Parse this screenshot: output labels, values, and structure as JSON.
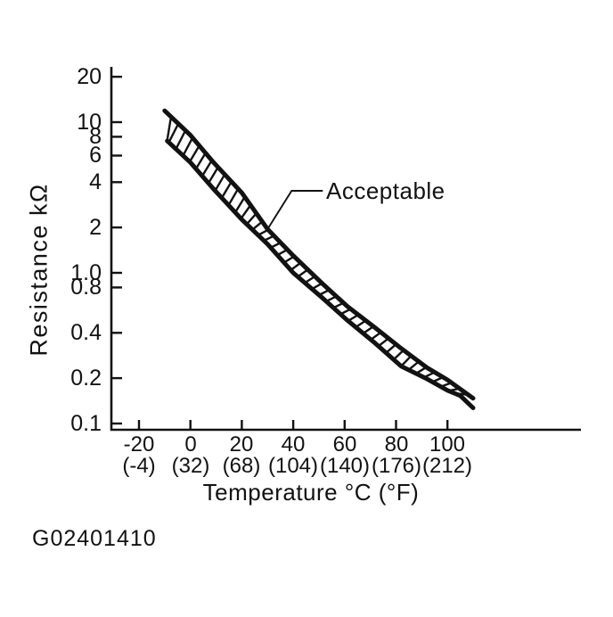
{
  "figure_id": "G02401410",
  "annotation": {
    "acceptable_label": "Acceptable"
  },
  "axes": {
    "y_title": "Resistance kΩ",
    "x_title": "Temperature °C (°F)",
    "y_tick_labels": [
      "20",
      "10",
      "8",
      "6",
      "4",
      "2",
      "1.0",
      "0.8",
      "0.4",
      "0.2",
      "0.1"
    ],
    "x_tick_labels_c": [
      "-20",
      "0",
      "20",
      "40",
      "60",
      "80",
      "100"
    ],
    "x_tick_labels_f": [
      "(-4)",
      "(32)",
      "(68)",
      "(104)",
      "(140)",
      "(176)",
      "(212)"
    ]
  },
  "chart_data": {
    "type": "area",
    "title": "",
    "xlabel": "Temperature °C (°F)",
    "ylabel": "Resistance kΩ",
    "x_scale": "linear",
    "y_scale": "log",
    "xlim_c": [
      -31,
      152
    ],
    "ylim_kohm": [
      0.1,
      20
    ],
    "grid": false,
    "y_ticks": [
      20,
      10,
      8,
      6,
      4,
      2,
      1.0,
      0.8,
      0.4,
      0.2,
      0.1
    ],
    "x_ticks_c": [
      -20,
      0,
      20,
      40,
      60,
      80,
      100
    ],
    "x_ticks_f": [
      -4,
      32,
      68,
      104,
      140,
      176,
      212
    ],
    "band_label": "Acceptable",
    "band_label_anchor": {
      "t_c": 30,
      "r_kohm": 1.95
    },
    "hatch_between_series": true,
    "series": [
      {
        "name": "upper_limit",
        "t_c": [
          -10,
          0,
          9,
          20,
          30,
          40,
          51,
          61,
          72,
          82,
          92,
          100,
          110
        ],
        "r_kohm": [
          11.9,
          8.2,
          5.4,
          3.4,
          1.95,
          1.3,
          0.86,
          0.6,
          0.43,
          0.315,
          0.235,
          0.195,
          0.147
        ]
      },
      {
        "name": "lower_limit",
        "t_c": [
          -9,
          0,
          9,
          20,
          30,
          40,
          51,
          61,
          72,
          82,
          92,
          100,
          105,
          110
        ],
        "r_kohm": [
          7.5,
          5.4,
          3.6,
          2.26,
          1.55,
          1.0,
          0.69,
          0.485,
          0.34,
          0.24,
          0.198,
          0.166,
          0.153,
          0.127
        ]
      }
    ]
  }
}
